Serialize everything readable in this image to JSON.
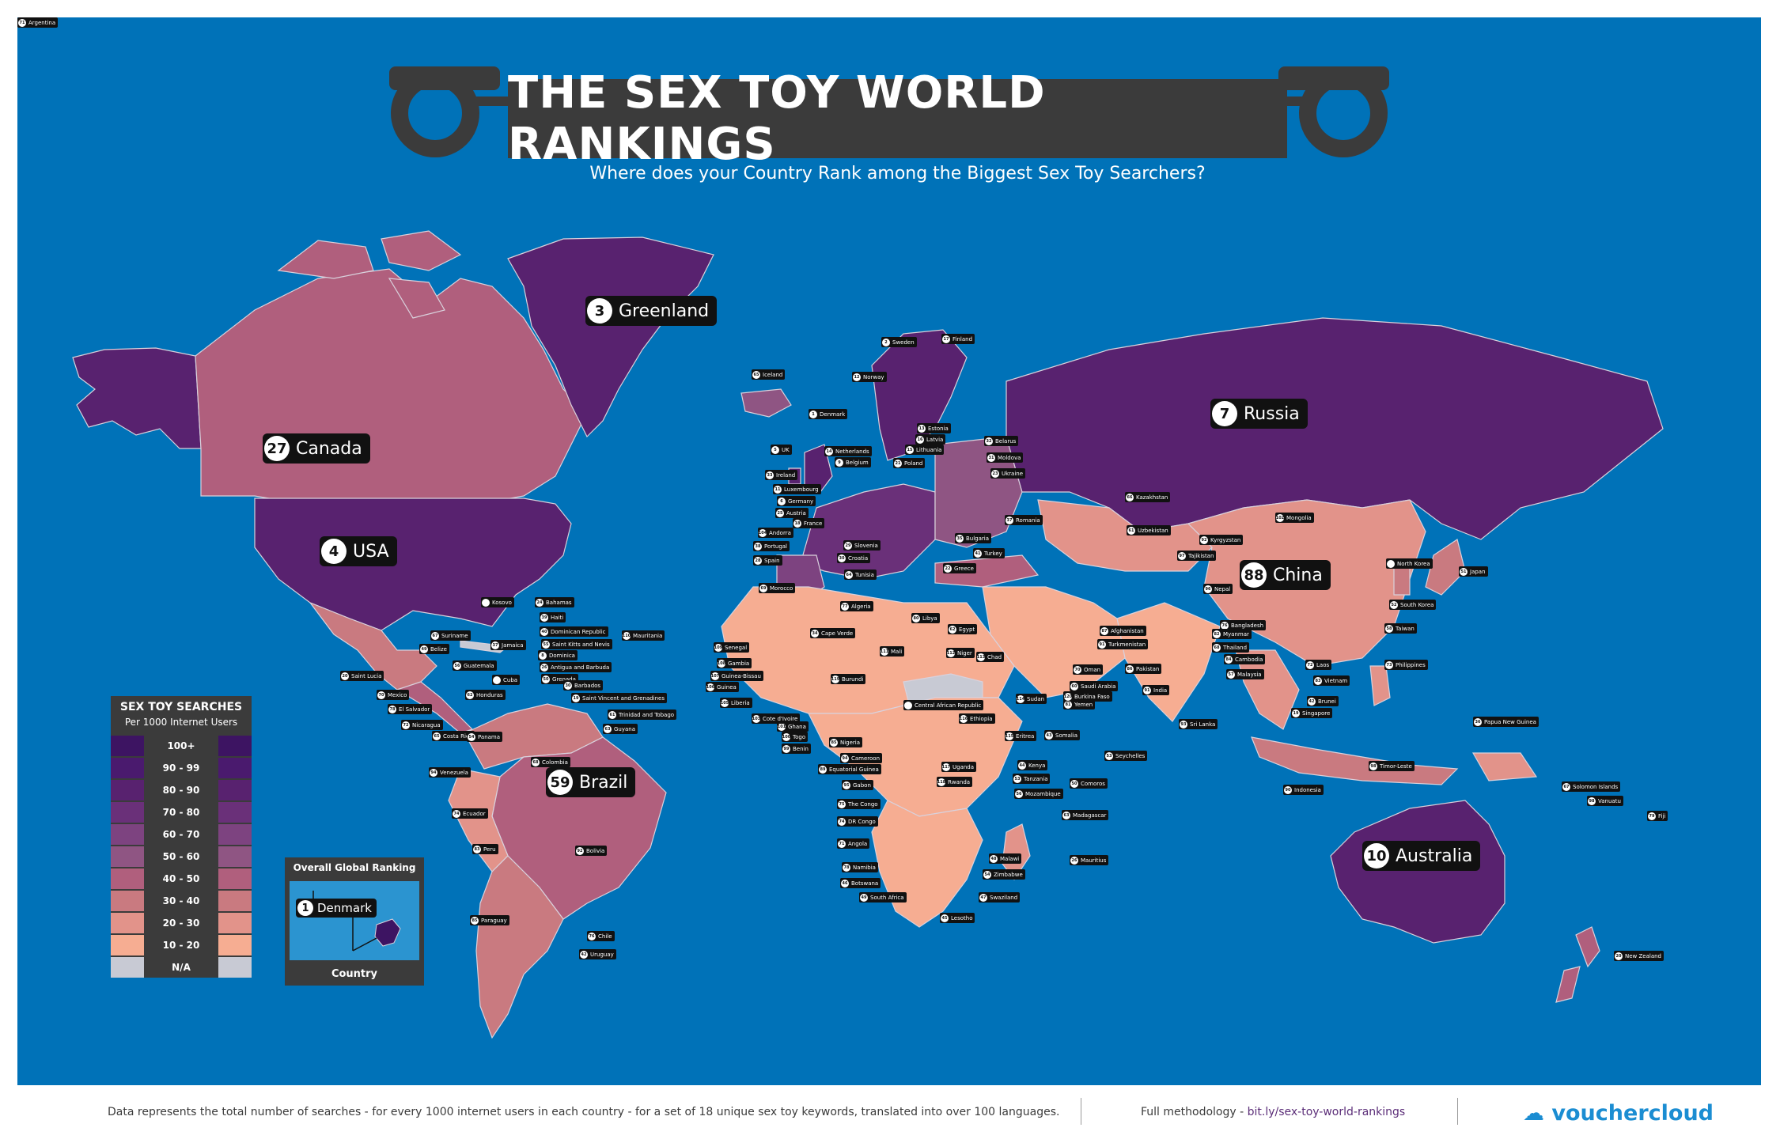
{
  "title": "THE SEX TOY WORLD RANKINGS",
  "subtitle": "Where does your Country Rank among the Biggest Sex Toy Searchers?",
  "colors": {
    "ocean": "#0072b8",
    "c100": "#3d1462",
    "c90": "#4a1a6e",
    "c80": "#58226f",
    "c70": "#6a3079",
    "c60": "#7d4380",
    "c50": "#8f5583",
    "c40": "#b05f7d",
    "c30": "#c97a80",
    "c20": "#e2938a",
    "c10": "#f6ad92",
    "na": "#c8cad4"
  },
  "major_labels": [
    {
      "rank": "3",
      "name": "Greenland"
    },
    {
      "rank": "7",
      "name": "Russia"
    },
    {
      "rank": "27",
      "name": "Canada"
    },
    {
      "rank": "4",
      "name": "USA"
    },
    {
      "rank": "88",
      "name": "China"
    },
    {
      "rank": "59",
      "name": "Brazil"
    },
    {
      "rank": "10",
      "name": "Australia"
    }
  ],
  "small_labels": [
    {
      "rank": "65",
      "name": "Iceland"
    },
    {
      "rank": "2",
      "name": "Sweden"
    },
    {
      "rank": "17",
      "name": "Finland"
    },
    {
      "rank": "12",
      "name": "Norway"
    },
    {
      "rank": "1",
      "name": "Denmark"
    },
    {
      "rank": "13",
      "name": "Estonia"
    },
    {
      "rank": "16",
      "name": "Latvia"
    },
    {
      "rank": "15",
      "name": "Lithuania"
    },
    {
      "rank": "32",
      "name": "Belarus"
    },
    {
      "rank": "5",
      "name": "UK"
    },
    {
      "rank": "14",
      "name": "Netherlands"
    },
    {
      "rank": "9",
      "name": "Belgium"
    },
    {
      "rank": "21",
      "name": "Poland"
    },
    {
      "rank": "31",
      "name": "Moldova"
    },
    {
      "rank": "23",
      "name": "Ukraine"
    },
    {
      "rank": "33",
      "name": "Ireland"
    },
    {
      "rank": "11",
      "name": "Luxembourg"
    },
    {
      "rank": "6",
      "name": "Germany"
    },
    {
      "rank": "25",
      "name": "Austria"
    },
    {
      "rank": "18",
      "name": "France"
    },
    {
      "rank": "37",
      "name": "Romania"
    },
    {
      "rank": "35",
      "name": "Bulgaria"
    },
    {
      "rank": "104",
      "name": "Andorra"
    },
    {
      "rank": "38",
      "name": "Portugal"
    },
    {
      "rank": "28",
      "name": "Spain"
    },
    {
      "rank": "29",
      "name": "Slovenia"
    },
    {
      "rank": "30",
      "name": "Croatia"
    },
    {
      "rank": "41",
      "name": "Turkey"
    },
    {
      "rank": "22",
      "name": "Greece"
    },
    {
      "rank": "64",
      "name": "Tunisia"
    },
    {
      "rank": "69",
      "name": "Morocco"
    },
    {
      "rank": "77",
      "name": "Algeria"
    },
    {
      "rank": "80",
      "name": "Libya"
    },
    {
      "rank": "62",
      "name": "Egypt"
    },
    {
      "rank": "66",
      "name": "Kazakhstan"
    },
    {
      "rank": "102",
      "name": "Mongolia"
    },
    {
      "rank": "61",
      "name": "Uzbekistan"
    },
    {
      "rank": "92",
      "name": "Kyrgyzstan"
    },
    {
      "rank": "97",
      "name": "Tajikistan"
    },
    {
      "rank": "87",
      "name": "Afghanistan"
    },
    {
      "rank": "91",
      "name": "Turkmenistan"
    },
    {
      "rank": "86",
      "name": "Pakistan"
    },
    {
      "rank": "91",
      "name": "India"
    },
    {
      "rank": "96",
      "name": "Nepal"
    },
    {
      "rank": "93",
      "name": "Sri Lanka"
    },
    {
      "rank": "76",
      "name": "Bangladesh"
    },
    {
      "rank": "82",
      "name": "Myanmar"
    },
    {
      "rank": "68",
      "name": "Thailand"
    },
    {
      "rank": "84",
      "name": "Cambodia"
    },
    {
      "rank": "72",
      "name": "Laos"
    },
    {
      "rank": "83",
      "name": "Vietnam"
    },
    {
      "rank": "57",
      "name": "Malaysia"
    },
    {
      "rank": "19",
      "name": "Singapore"
    },
    {
      "rank": "42",
      "name": "Brunei"
    },
    {
      "rank": "90",
      "name": "Indonesia"
    },
    {
      "rank": "73",
      "name": "Philippines"
    },
    {
      "rank": "58",
      "name": "Taiwan"
    },
    {
      "rank": "52",
      "name": "South Korea"
    },
    {
      "rank": "",
      "name": "North Korea"
    },
    {
      "rank": "51",
      "name": "Japan"
    },
    {
      "rank": "36",
      "name": "Papua New Guinea"
    },
    {
      "rank": "98",
      "name": "Timor-Leste"
    },
    {
      "rank": "67",
      "name": "Solomon Islands"
    },
    {
      "rank": "98",
      "name": "Vanuatu"
    },
    {
      "rank": "79",
      "name": "Fiji"
    },
    {
      "rank": "20",
      "name": "New Zealand"
    },
    {
      "rank": "60",
      "name": "Saudi Arabia"
    },
    {
      "rank": "70",
      "name": "Oman"
    },
    {
      "rank": "81",
      "name": "Yemen"
    },
    {
      "rank": "43",
      "name": "Somalia"
    },
    {
      "rank": "44",
      "name": "Kenya"
    },
    {
      "rank": "53",
      "name": "Tanzania"
    },
    {
      "rank": "56",
      "name": "Mozambique"
    },
    {
      "rank": "50",
      "name": "Comoros"
    },
    {
      "rank": "53",
      "name": "Seychelles"
    },
    {
      "rank": "63",
      "name": "Madagascar"
    },
    {
      "rank": "26",
      "name": "Mauritius"
    },
    {
      "rank": "48",
      "name": "Malawi"
    },
    {
      "rank": "54",
      "name": "Zimbabwe"
    },
    {
      "rank": "47",
      "name": "Swaziland"
    },
    {
      "rank": "49",
      "name": "South Africa"
    },
    {
      "rank": "45",
      "name": "Lesotho"
    },
    {
      "rank": "46",
      "name": "Botswana"
    },
    {
      "rank": "78",
      "name": "Namibia"
    },
    {
      "rank": "71",
      "name": "Angola"
    },
    {
      "rank": "74",
      "name": "DR Congo"
    },
    {
      "rank": "75",
      "name": "The Congo"
    },
    {
      "rank": "95",
      "name": "Gabon"
    },
    {
      "rank": "89",
      "name": "Equatorial Guinea"
    },
    {
      "rank": "94",
      "name": "Cameroon"
    },
    {
      "rank": "85",
      "name": "Nigeria"
    },
    {
      "rank": "99",
      "name": "Benin"
    },
    {
      "rank": "100",
      "name": "Togo"
    },
    {
      "rank": "101",
      "name": "Ghana"
    },
    {
      "rank": "103",
      "name": "Cote d'Ivoire"
    },
    {
      "rank": "105",
      "name": "Liberia"
    },
    {
      "rank": "106",
      "name": "Guinea"
    },
    {
      "rank": "107",
      "name": "Guinea-Bissau"
    },
    {
      "rank": "108",
      "name": "Gambia"
    },
    {
      "rank": "109",
      "name": "Senegal"
    },
    {
      "rank": "110",
      "name": "Mauritania"
    },
    {
      "rank": "34",
      "name": "Cape Verde"
    },
    {
      "rank": "111",
      "name": "Mali"
    },
    {
      "rank": "112",
      "name": "Niger"
    },
    {
      "rank": "113",
      "name": "Chad"
    },
    {
      "rank": "114",
      "name": "Sudan"
    },
    {
      "rank": "115",
      "name": "Eritrea"
    },
    {
      "rank": "116",
      "name": "Ethiopia"
    },
    {
      "rank": "117",
      "name": "Uganda"
    },
    {
      "rank": "118",
      "name": "Rwanda"
    },
    {
      "rank": "119",
      "name": "Burundi"
    },
    {
      "rank": "",
      "name": "Central African Republic"
    },
    {
      "rank": "120",
      "name": "Burkina Faso"
    },
    {
      "rank": "",
      "name": "Kosovo"
    },
    {
      "rank": "24",
      "name": "Bahamas"
    },
    {
      "rank": "39",
      "name": "Haiti"
    },
    {
      "rank": "40",
      "name": "Dominican Republic"
    },
    {
      "rank": "55",
      "name": "Saint Kitts and Nevis"
    },
    {
      "rank": "8",
      "name": "Dominica"
    },
    {
      "rank": "26",
      "name": "Antigua and Barbuda"
    },
    {
      "rank": "50",
      "name": "Grenada"
    },
    {
      "rank": "30",
      "name": "Barbados"
    },
    {
      "rank": "19",
      "name": "Saint Vincent and Grenadines"
    },
    {
      "rank": "61",
      "name": "Trinidad and Tobago"
    },
    {
      "rank": "63",
      "name": "Guyana"
    },
    {
      "rank": "67",
      "name": "Suriname"
    },
    {
      "rank": "49",
      "name": "Belize"
    },
    {
      "rank": "56",
      "name": "Guatemala"
    },
    {
      "rank": "37",
      "name": "Jamaica"
    },
    {
      "rank": "",
      "name": "Cuba"
    },
    {
      "rank": "20",
      "name": "Saint Lucia"
    },
    {
      "rank": "70",
      "name": "Mexico"
    },
    {
      "rank": "78",
      "name": "El Salvador"
    },
    {
      "rank": "62",
      "name": "Honduras"
    },
    {
      "rank": "72",
      "name": "Nicaragua"
    },
    {
      "rank": "65",
      "name": "Costa Rica"
    },
    {
      "rank": "54",
      "name": "Panama"
    },
    {
      "rank": "68",
      "name": "Colombia"
    },
    {
      "rank": "94",
      "name": "Venezuela"
    },
    {
      "rank": "74",
      "name": "Ecuador"
    },
    {
      "rank": "83",
      "name": "Peru"
    },
    {
      "rank": "92",
      "name": "Bolivia"
    },
    {
      "rank": "85",
      "name": "Paraguay"
    },
    {
      "rank": "76",
      "name": "Chile"
    },
    {
      "rank": "42",
      "name": "Uruguay"
    },
    {
      "rank": "71",
      "name": "Argentina"
    }
  ],
  "legend": {
    "title": "SEX TOY SEARCHES",
    "subtitle": "Per 1000 Internet Users",
    "rows": [
      {
        "label": "100+",
        "color": "#3d1462"
      },
      {
        "label": "90 - 99",
        "color": "#4a1a6e"
      },
      {
        "label": "80 - 90",
        "color": "#58226f"
      },
      {
        "label": "70 - 80",
        "color": "#6a3079"
      },
      {
        "label": "60 - 70",
        "color": "#7d4380"
      },
      {
        "label": "50 - 60",
        "color": "#8f5583"
      },
      {
        "label": "40 - 50",
        "color": "#b05f7d"
      },
      {
        "label": "30 - 40",
        "color": "#c97a80"
      },
      {
        "label": "20 - 30",
        "color": "#e2938a"
      },
      {
        "label": "10 - 20",
        "color": "#f6ad92"
      },
      {
        "label": "N/A",
        "color": "#c8cad4"
      }
    ]
  },
  "ranking_key": {
    "title": "Overall Global Ranking",
    "example_rank": "1",
    "example_country": "Denmark",
    "footer": "Country"
  },
  "footer": {
    "note": "Data represents the total number of searches - for every 1000 internet users in each country - for a set of 18 unique sex toy keywords, translated into over 100 languages.",
    "methodology_label": "Full methodology -",
    "methodology_link": "bit.ly/sex-toy-world-rankings",
    "brand": "vouchercloud"
  }
}
